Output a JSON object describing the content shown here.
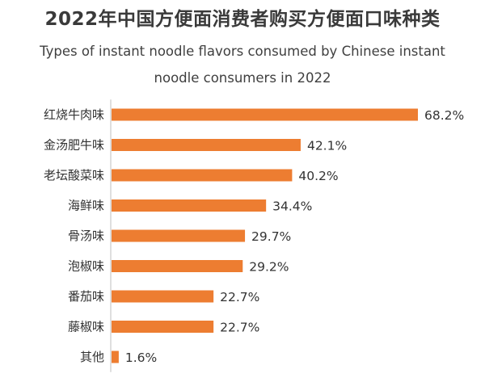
{
  "chart_data": {
    "type": "bar",
    "orientation": "horizontal",
    "title": "2022年中国方便面消费者购买方便面口味种类",
    "subtitle_line1": "Types of instant noodle flavors consumed by Chinese instant",
    "subtitle_line2": "noodle consumers in 2022",
    "categories": [
      "红烧牛肉味",
      "金汤肥牛味",
      "老坛酸菜味",
      "海鲜味",
      "骨汤味",
      "泡椒味",
      "番茄味",
      "藤椒味",
      "其他"
    ],
    "values": [
      68.2,
      42.1,
      40.2,
      34.4,
      29.7,
      29.2,
      22.7,
      22.7,
      1.6
    ],
    "value_labels": [
      "68.2%",
      "42.1%",
      "40.2%",
      "34.4%",
      "29.7%",
      "29.2%",
      "22.7%",
      "22.7%",
      "1.6%"
    ],
    "unit": "%",
    "bar_color": "#ED7D31",
    "axis_color": "#BFBFBF",
    "xlim": [
      0,
      68.2
    ],
    "grid": false,
    "legend": "none"
  }
}
